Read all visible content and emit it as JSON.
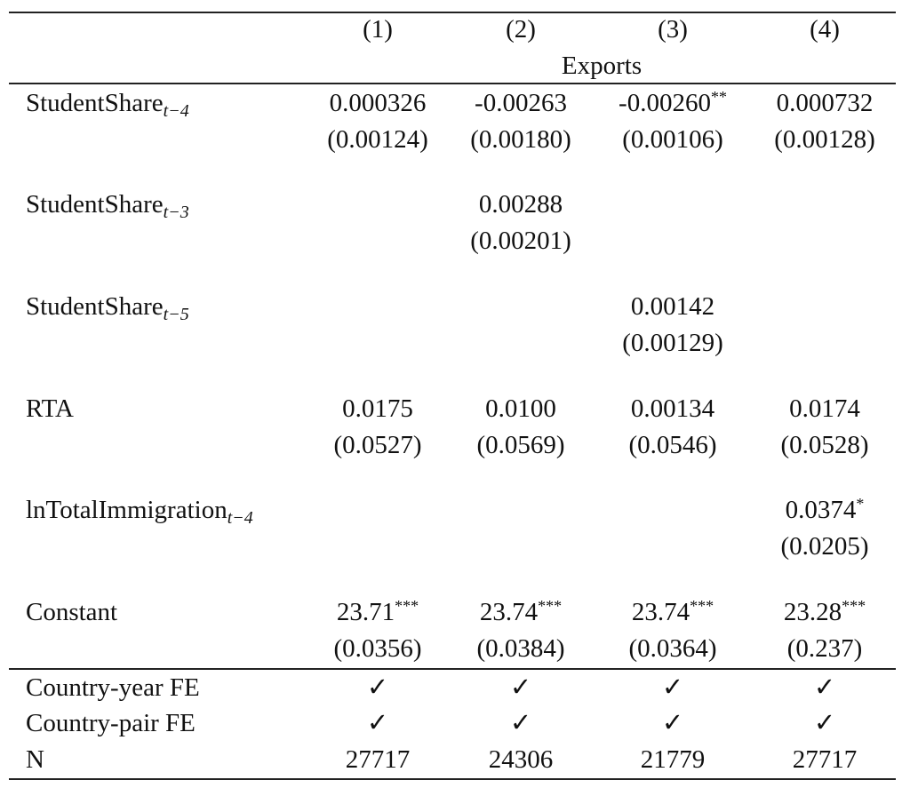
{
  "header": {
    "columns": [
      "(1)",
      "(2)",
      "(3)",
      "(4)"
    ],
    "dep_var": "Exports"
  },
  "rows": [
    {
      "label": "StudentShare",
      "sub": "t−4",
      "coef": [
        {
          "v": "0.000326",
          "s": ""
        },
        {
          "v": "-0.00263",
          "s": ""
        },
        {
          "v": "-0.00260",
          "s": "**"
        },
        {
          "v": "0.000732",
          "s": ""
        }
      ],
      "se": [
        "(0.00124)",
        "(0.00180)",
        "(0.00106)",
        "(0.00128)"
      ]
    },
    {
      "label": "StudentShare",
      "sub": "t−3",
      "coef": [
        {
          "v": "",
          "s": ""
        },
        {
          "v": "0.00288",
          "s": ""
        },
        {
          "v": "",
          "s": ""
        },
        {
          "v": "",
          "s": ""
        }
      ],
      "se": [
        "",
        "(0.00201)",
        "",
        ""
      ]
    },
    {
      "label": "StudentShare",
      "sub": "t−5",
      "coef": [
        {
          "v": "",
          "s": ""
        },
        {
          "v": "",
          "s": ""
        },
        {
          "v": "0.00142",
          "s": ""
        },
        {
          "v": "",
          "s": ""
        }
      ],
      "se": [
        "",
        "",
        "(0.00129)",
        ""
      ]
    },
    {
      "label": "RTA",
      "sub": "",
      "coef": [
        {
          "v": "0.0175",
          "s": ""
        },
        {
          "v": "0.0100",
          "s": ""
        },
        {
          "v": "0.00134",
          "s": ""
        },
        {
          "v": "0.0174",
          "s": ""
        }
      ],
      "se": [
        "(0.0527)",
        "(0.0569)",
        "(0.0546)",
        "(0.0528)"
      ]
    },
    {
      "label": "lnTotalImmigration",
      "sub": "t−4",
      "coef": [
        {
          "v": "",
          "s": ""
        },
        {
          "v": "",
          "s": ""
        },
        {
          "v": "",
          "s": ""
        },
        {
          "v": "0.0374",
          "s": "*"
        }
      ],
      "se": [
        "",
        "",
        "",
        "(0.0205)"
      ]
    },
    {
      "label": "Constant",
      "sub": "",
      "coef": [
        {
          "v": "23.71",
          "s": "***"
        },
        {
          "v": "23.74",
          "s": "***"
        },
        {
          "v": "23.74",
          "s": "***"
        },
        {
          "v": "23.28",
          "s": "***"
        }
      ],
      "se": [
        "(0.0356)",
        "(0.0384)",
        "(0.0364)",
        "(0.237)"
      ]
    }
  ],
  "footer": [
    {
      "label": "Country-year FE",
      "values": [
        "✓",
        "✓",
        "✓",
        "✓"
      ]
    },
    {
      "label": "Country-pair FE",
      "values": [
        "✓",
        "✓",
        "✓",
        "✓"
      ]
    },
    {
      "label": "N",
      "values": [
        "27717",
        "24306",
        "21779",
        "27717"
      ]
    }
  ]
}
